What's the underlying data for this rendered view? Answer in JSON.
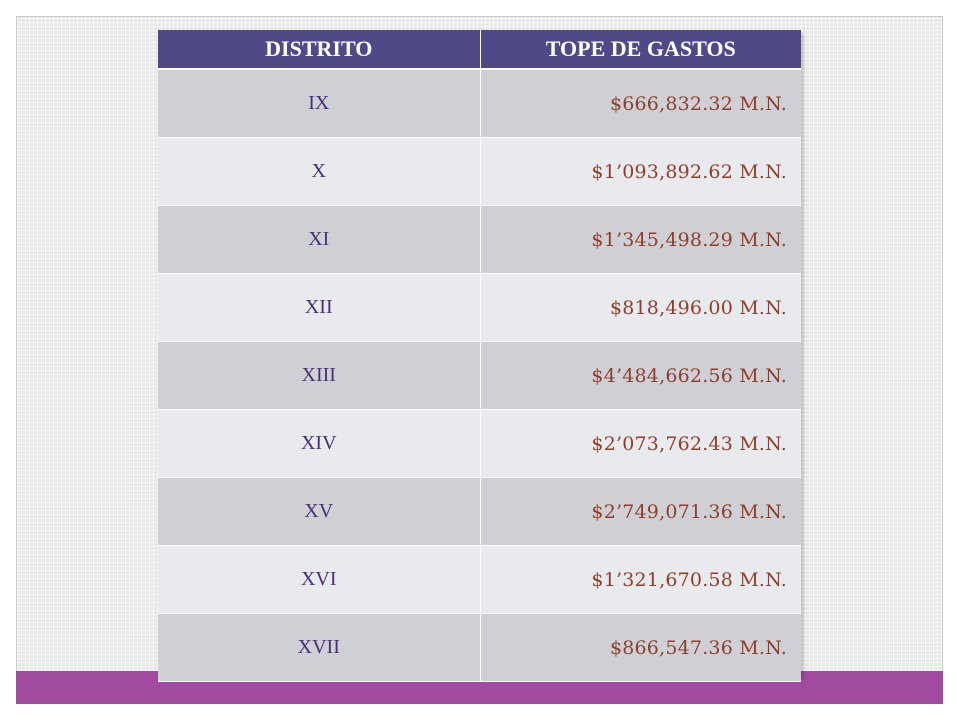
{
  "table": {
    "headers": {
      "district": "DISTRITO",
      "amount": "TOPE DE GASTOS"
    },
    "rows": [
      {
        "district": "IX",
        "amount": "$666,832.32 M.N."
      },
      {
        "district": "X",
        "amount": "$1’093,892.62 M.N."
      },
      {
        "district": "XI",
        "amount": "$1’345,498.29 M.N."
      },
      {
        "district": "XII",
        "amount": "$818,496.00 M.N."
      },
      {
        "district": "XIII",
        "amount": "$4’484,662.56 M.N."
      },
      {
        "district": "XIV",
        "amount": "$2’073,762.43 M.N."
      },
      {
        "district": "XV",
        "amount": "$2’749,071.36 M.N."
      },
      {
        "district": "XVI",
        "amount": "$1’321,670.58 M.N."
      },
      {
        "district": "XVII",
        "amount": "$866,547.36 M.N."
      }
    ]
  },
  "colors": {
    "header_bg": "#4f4a87",
    "row_odd": "#cfd0d6",
    "row_even": "#e9eaee",
    "band": "#a04b9f",
    "amount_text": "#8e3f2a"
  }
}
